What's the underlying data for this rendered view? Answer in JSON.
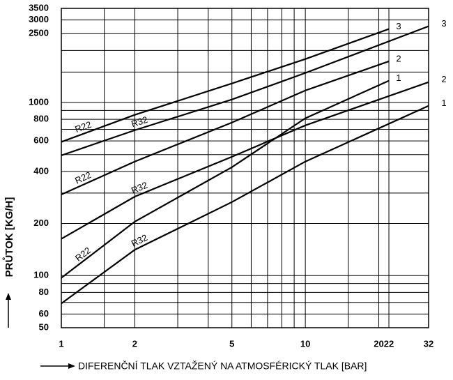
{
  "chart_data": {
    "type": "line",
    "xlabel": "DIFERENČNÍ TLAK VZTAŽENÝ NA ATMOSFÉRICKÝ TLAK [BAR]",
    "ylabel": "PRŮTOK [KG/H]",
    "xscale": "log",
    "yscale": "log",
    "grid": true,
    "xlim": [
      1,
      32
    ],
    "ylim": [
      50,
      3500
    ],
    "xticks": [
      1,
      2,
      5,
      10,
      20,
      22,
      32
    ],
    "yticks": [
      50,
      60,
      80,
      100,
      200,
      400,
      600,
      800,
      1000,
      2500,
      3000,
      3500
    ],
    "xgrid": [
      1.5,
      3,
      4,
      6,
      7,
      8,
      9,
      15
    ],
    "ygrid": [
      70,
      90,
      300,
      500,
      700,
      900,
      1500,
      2000
    ],
    "series": [
      {
        "name": "R22",
        "end_label": "3",
        "color": "#000000",
        "x": [
          1,
          2,
          5,
          10,
          22
        ],
        "values": [
          592,
          849,
          1289,
          1783,
          2660
        ]
      },
      {
        "name": "R32",
        "end_label": "3",
        "color": "#000000",
        "x": [
          1,
          2,
          5,
          10,
          32
        ],
        "values": [
          495,
          692,
          1041,
          1482,
          2760
        ]
      },
      {
        "name": "R22",
        "end_label": "2",
        "color": "#000000",
        "x": [
          1,
          2,
          5,
          10,
          22
        ],
        "values": [
          294,
          456,
          766,
          1174,
          1730
        ]
      },
      {
        "name": "R32",
        "end_label": "2",
        "color": "#000000",
        "x": [
          1,
          2,
          5,
          10,
          32
        ],
        "values": [
          163,
          286,
          486,
          738,
          1312
        ]
      },
      {
        "name": "R22",
        "end_label": "1",
        "color": "#000000",
        "x": [
          1,
          2,
          5,
          10,
          22
        ],
        "values": [
          97,
          205,
          423,
          811,
          1337
        ]
      },
      {
        "name": "R32",
        "end_label": "1",
        "color": "#000000",
        "x": [
          1,
          2,
          5,
          10,
          32
        ],
        "values": [
          69,
          141,
          266,
          456,
          957
        ]
      }
    ]
  }
}
